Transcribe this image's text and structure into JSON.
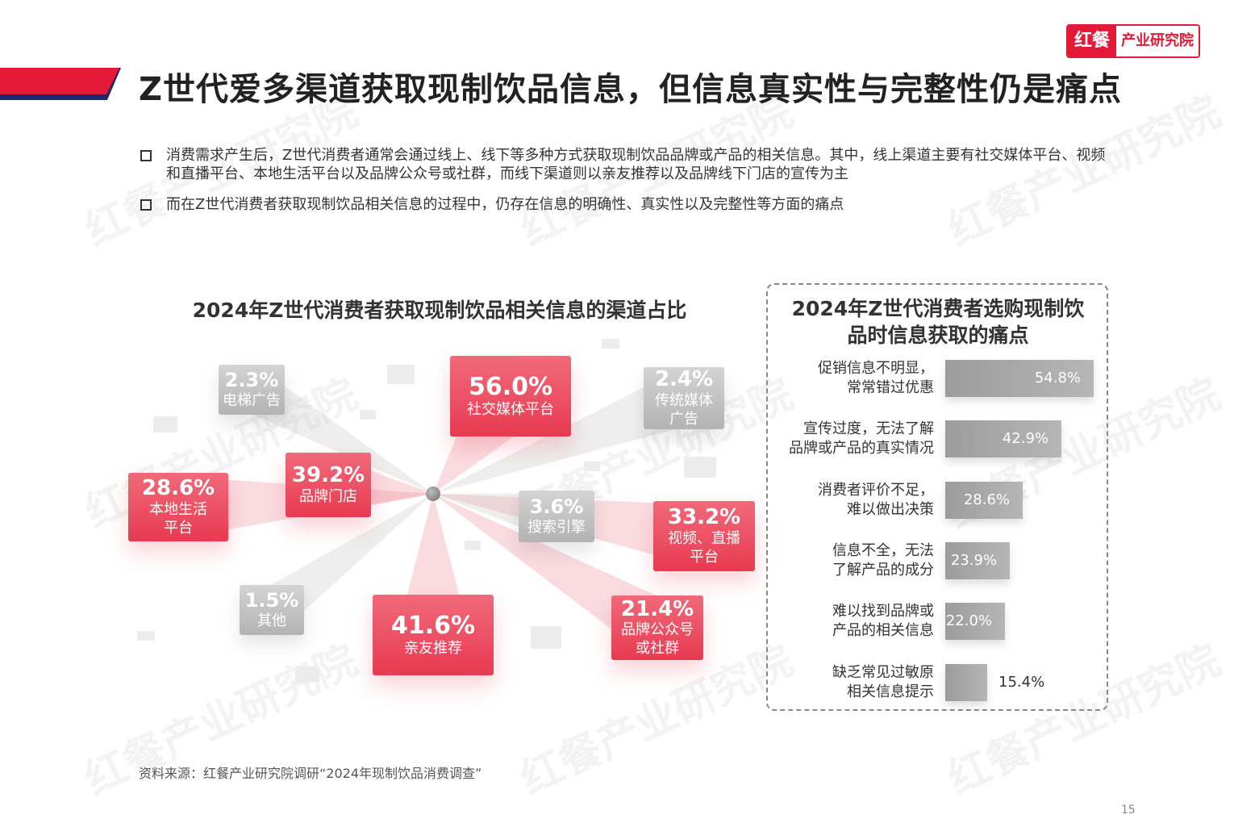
{
  "header": {
    "title": "Z世代爱多渠道获取现制饮品信息，但信息真实性与完整性仍是痛点",
    "logo_left": "红餐",
    "logo_right": "产业研究院"
  },
  "bullets": [
    "消费需求产生后，Z世代消费者通常会通过线上、线下等多种方式获取现制饮品品牌或产品的相关信息。其中，线上渠道主要有社交媒体平台、视频和直播平台、本地生活平台以及品牌公众号或社群，而线下渠道则以亲友推荐以及品牌线下门店的宣传为主",
    "而在Z世代消费者获取现制饮品相关信息的过程中，仍存在信息的明确性、真实性以及完整性等方面的痛点"
  ],
  "colors": {
    "accent": "#e31937",
    "navy": "#1a2a6c",
    "card_red": "#e83a51",
    "card_gray": "#b3b3b3",
    "bar_gray": "#a8a8a8"
  },
  "chart_data": [
    {
      "type": "bubble-radial",
      "title": "2024年Z世代消费者获取现制饮品相关信息的渠道占比",
      "categories": [
        "社交媒体平台",
        "亲友推荐",
        "品牌门店",
        "视频、直播平台",
        "本地生活平台",
        "品牌公众号或社群",
        "搜索引擎",
        "传统媒体广告",
        "电梯广告",
        "其他"
      ],
      "values": [
        56.0,
        41.6,
        39.2,
        33.2,
        28.6,
        21.4,
        3.6,
        2.4,
        2.3,
        1.5
      ],
      "labels": [
        "56.0%",
        "41.6%",
        "39.2%",
        "33.2%",
        "28.6%",
        "21.4%",
        "3.6%",
        "2.4%",
        "2.3%",
        "1.5%"
      ],
      "name_lines": [
        [
          "社交媒体平台"
        ],
        [
          "亲友推荐"
        ],
        [
          "品牌门店"
        ],
        [
          "视频、直播",
          "平台"
        ],
        [
          "本地生活",
          "平台"
        ],
        [
          "品牌公众号",
          "或社群"
        ],
        [
          "搜索引擎"
        ],
        [
          "传统媒体",
          "广告"
        ],
        [
          "电梯广告"
        ],
        [
          "其他"
        ]
      ],
      "highlight": [
        true,
        true,
        true,
        true,
        true,
        true,
        false,
        false,
        false,
        false
      ]
    },
    {
      "type": "bar",
      "orientation": "horizontal",
      "title": "2024年Z世代消费者选购现制饮品时信息获取的痛点",
      "title_lines": [
        "2024年Z世代消费者选购现制饮",
        "品时信息获取的痛点"
      ],
      "categories": [
        "促销信息不明显，常常错过优惠",
        "宣传过度，无法了解品牌或产品的真实情况",
        "消费者评价不足，难以做出决策",
        "信息不全，无法了解产品的成分",
        "难以找到品牌或产品的相关信息",
        "缺乏常见过敏原相关信息提示"
      ],
      "category_lines": [
        [
          "促销信息不明显，",
          "常常错过优惠"
        ],
        [
          "宣传过度，无法了解",
          "品牌或产品的真实情况"
        ],
        [
          "消费者评价不足，",
          "难以做出决策"
        ],
        [
          "信息不全，无法",
          "了解产品的成分"
        ],
        [
          "难以找到品牌或",
          "产品的相关信息"
        ],
        [
          "缺乏常见过敏原",
          "相关信息提示"
        ]
      ],
      "values": [
        54.8,
        42.9,
        28.6,
        23.9,
        22.0,
        15.4
      ],
      "labels": [
        "54.8%",
        "42.9%",
        "28.6%",
        "23.9%",
        "22.0%",
        "15.4%"
      ],
      "xlim": [
        0,
        60
      ]
    }
  ],
  "footer": {
    "source": "资料来源：红餐产业研究院调研“2024年现制饮品消费调查”",
    "page": "15"
  }
}
